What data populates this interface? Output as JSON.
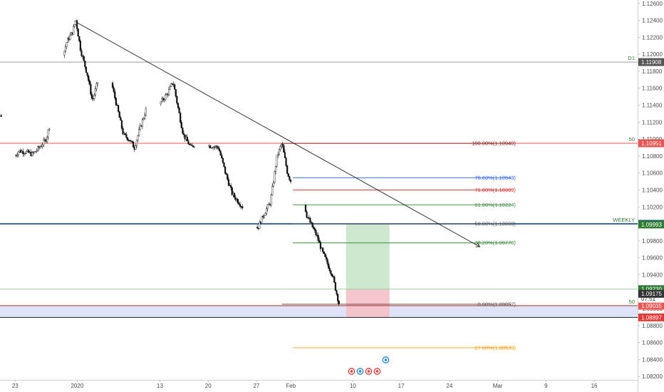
{
  "chart_data": {
    "type": "candlestick",
    "y_ticks": [
      "1.12600",
      "1.12400",
      "1.12200",
      "1.12000",
      "1.11800",
      "1.11600",
      "1.11400",
      "1.11200",
      "1.11000",
      "1.10800",
      "1.10600",
      "1.10400",
      "1.10200",
      "1.10000",
      "1.09800",
      "1.09600",
      "1.09400",
      "1.09200",
      "1.09000",
      "1.08800",
      "1.08600",
      "1.08400",
      "1.08200"
    ],
    "ylim": [
      1.0816,
      1.1264
    ],
    "x_ticks": [
      {
        "label": "23",
        "day": 0
      },
      {
        "label": "2020",
        "day": 9
      },
      {
        "label": "13",
        "day": 21
      },
      {
        "label": "20",
        "day": 28
      },
      {
        "label": "27",
        "day": 35
      },
      {
        "label": "Feb",
        "day": 40
      },
      {
        "label": "10",
        "day": 49
      },
      {
        "label": "17",
        "day": 56
      },
      {
        "label": "24",
        "day": 63
      },
      {
        "label": "Mar",
        "day": 70
      },
      {
        "label": "9",
        "day": 77
      },
      {
        "label": "16",
        "day": 84
      }
    ],
    "xlim_days": [
      -2.2,
      90.3
    ],
    "price_path": [
      [
        -2.2,
        1.1128
      ],
      [
        -1.5,
        1.1122
      ],
      [
        -0.5,
        1.1095
      ],
      [
        0,
        1.108
      ],
      [
        0.5,
        1.1086
      ],
      [
        1.5,
        1.1085
      ],
      [
        2.5,
        1.1082
      ],
      [
        3.5,
        1.109
      ],
      [
        4.5,
        1.11
      ],
      [
        5.5,
        1.1132
      ],
      [
        6.5,
        1.1185
      ],
      [
        7.5,
        1.1215
      ],
      [
        8.3,
        1.1226
      ],
      [
        8.8,
        1.124
      ],
      [
        9.5,
        1.1205
      ],
      [
        10.5,
        1.1175
      ],
      [
        11.2,
        1.1145
      ],
      [
        12,
        1.1168
      ],
      [
        12.6,
        1.1185
      ],
      [
        13.2,
        1.1195
      ],
      [
        14,
        1.1165
      ],
      [
        15,
        1.113
      ],
      [
        15.7,
        1.1105
      ],
      [
        16.5,
        1.11
      ],
      [
        17.3,
        1.109
      ],
      [
        18,
        1.111
      ],
      [
        19,
        1.1135
      ],
      [
        20,
        1.1128
      ],
      [
        21,
        1.1142
      ],
      [
        22.2,
        1.1155
      ],
      [
        22.9,
        1.1168
      ],
      [
        23.5,
        1.1142
      ],
      [
        24.4,
        1.1105
      ],
      [
        25.5,
        1.109
      ],
      [
        26.5,
        1.1098
      ],
      [
        27.5,
        1.1092
      ],
      [
        28.5,
        1.1092
      ],
      [
        29.5,
        1.109
      ],
      [
        30.5,
        1.106
      ],
      [
        31.5,
        1.1035
      ],
      [
        32.5,
        1.1025
      ],
      [
        33.5,
        1.1015
      ],
      [
        34.3,
        1.1
      ],
      [
        35.2,
        1.0995
      ],
      [
        36,
        1.101
      ],
      [
        36.5,
        1.1018
      ],
      [
        37,
        1.1025
      ],
      [
        38,
        1.108
      ],
      [
        38.7,
        1.1095
      ],
      [
        39.5,
        1.106
      ],
      [
        40,
        1.105
      ],
      [
        40.5,
        1.1045
      ],
      [
        41.5,
        1.104
      ],
      [
        42.3,
        1.101
      ],
      [
        43.2,
        1.0995
      ],
      [
        43.8,
        1.0985
      ],
      [
        44.5,
        1.0968
      ],
      [
        45.2,
        1.0955
      ],
      [
        46,
        1.094
      ],
      [
        47,
        1.0905
      ],
      [
        47.8,
        1.091
      ],
      [
        48.6,
        1.0908
      ]
    ],
    "trendline": {
      "from": {
        "day": 8.6,
        "price": 1.1239
      },
      "to": {
        "day": 67.4,
        "price": 1.0973
      }
    },
    "fibonacci": [
      {
        "label": "100.00%(1.10949)",
        "price": 1.10949,
        "color": "#8b1a1a"
      },
      {
        "label": "78.60%(1.10543)",
        "price": 1.10543,
        "color": "#2962ff"
      },
      {
        "label": "71.00%(1.10399)",
        "price": 1.10399,
        "color": "#d32f2f"
      },
      {
        "label": "61.80%(1.10224)",
        "price": 1.10224,
        "color": "#388e3c"
      },
      {
        "label": "50.00%(1.10000)",
        "price": 1.1,
        "color": "#555555"
      },
      {
        "label": "38.20%(1.09776)",
        "price": 1.09776,
        "color": "#388e3c"
      },
      {
        "label": "0.00%(1.09052)",
        "price": 1.09052,
        "color": "#555555"
      },
      {
        "label": "-27.00%(1.08539)",
        "price": 1.08539,
        "color": "#ff9800"
      }
    ],
    "levels": [
      {
        "name": "D1",
        "price": 1.11908,
        "line_color": "#9e9e9e",
        "label_color": "#2e7d32",
        "tag_bg": "#555555",
        "tag": "1.11908"
      },
      {
        "name": "50",
        "price": 1.10951,
        "line_color": "#ef5350",
        "label_color": "#2e7d32",
        "tag_bg": "#ef5350",
        "tag": "1.10951"
      },
      {
        "name": "WEEKLY",
        "price": 1.1,
        "line_color": "#0d47a1",
        "label_color": "#2e7d32",
        "tag_bg": "#0d47a1",
        "tag": "1.10000"
      },
      {
        "name": "50",
        "price": 1.09035,
        "line_color": "#c62828",
        "label_color": "#2e7d32",
        "tag_bg": "#ef5350",
        "tag": "1.09035"
      }
    ],
    "bottom_line": {
      "price": 1.08897,
      "color": "#222222",
      "tag": "1.08897",
      "tag_bg": "#e53935"
    },
    "zone": {
      "top": 1.09035,
      "bottom": 1.08897,
      "color": "#dde4f7"
    },
    "position": {
      "start_day": 48.0,
      "end_day": 54.3,
      "entry": 1.0923,
      "target": 1.09993,
      "stop": 1.08897
    },
    "entry_line_color": "#9ccc9c",
    "tags": [
      {
        "text": "1.09993",
        "price": 1.09993,
        "bg": "#2e7d32"
      },
      {
        "text": "1.09230",
        "price": 1.0923,
        "bg": "#2e7d32"
      },
      {
        "text": "07:51",
        "price": 1.09117,
        "bg": "#ffffff",
        "fg": "#333333"
      },
      {
        "text": "1.09175",
        "price": 1.09175,
        "bg": "#333333"
      }
    ],
    "events": [
      {
        "text": "2"
      },
      {
        "text": "10"
      },
      {
        "text": "7"
      },
      {
        "text": "2"
      },
      {
        "text": "7"
      }
    ]
  }
}
